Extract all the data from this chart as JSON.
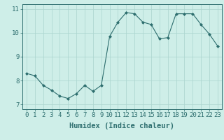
{
  "x": [
    0,
    1,
    2,
    3,
    4,
    5,
    6,
    7,
    8,
    9,
    10,
    11,
    12,
    13,
    14,
    15,
    16,
    17,
    18,
    19,
    20,
    21,
    22,
    23
  ],
  "y": [
    8.3,
    8.2,
    7.8,
    7.6,
    7.35,
    7.25,
    7.45,
    7.8,
    7.55,
    7.8,
    9.85,
    10.45,
    10.85,
    10.8,
    10.45,
    10.35,
    9.75,
    9.8,
    10.8,
    10.8,
    10.8,
    10.35,
    9.95,
    9.45
  ],
  "line_color": "#2d6e6e",
  "marker": "D",
  "marker_size": 2.0,
  "bg_color": "#ceeee8",
  "grid_color": "#aad4ce",
  "xlabel": "Humidex (Indice chaleur)",
  "xlim": [
    -0.5,
    23.5
  ],
  "ylim": [
    6.8,
    11.2
  ],
  "yticks": [
    7,
    8,
    9,
    10,
    11
  ],
  "xticks": [
    0,
    1,
    2,
    3,
    4,
    5,
    6,
    7,
    8,
    9,
    10,
    11,
    12,
    13,
    14,
    15,
    16,
    17,
    18,
    19,
    20,
    21,
    22,
    23
  ],
  "font_size": 6.5,
  "xlabel_fontsize": 7.5,
  "tick_color": "#2d6e6e",
  "axis_color": "#2d6e6e"
}
